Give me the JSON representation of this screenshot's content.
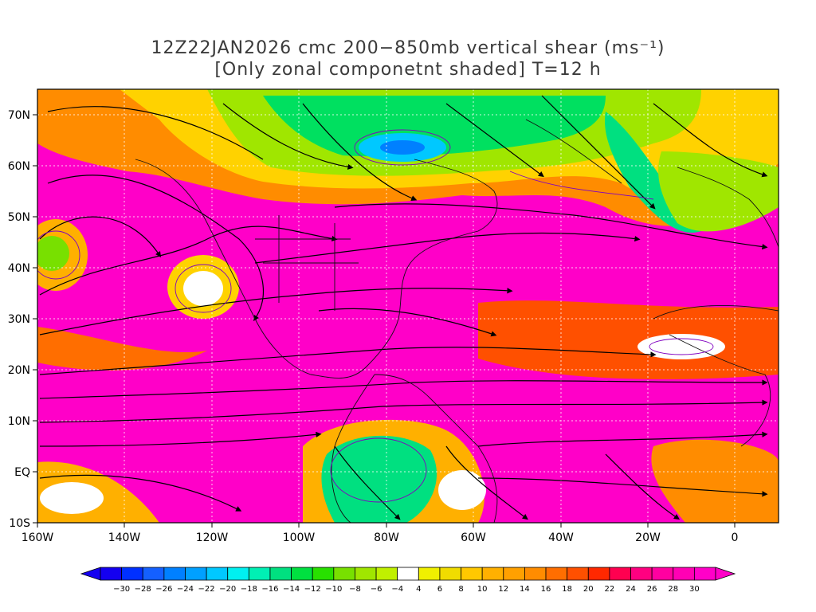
{
  "title": {
    "line1": "12Z22JAN2026 cmc 200−850mb vertical shear (ms⁻¹)",
    "line2": "[Only zonal componetnt shaded] T=12 h"
  },
  "axes": {
    "lat_labels": [
      "70N",
      "60N",
      "50N",
      "40N",
      "30N",
      "20N",
      "10N",
      "EQ",
      "10S"
    ],
    "lon_labels": [
      "160W",
      "140W",
      "120W",
      "100W",
      "80W",
      "60W",
      "40W",
      "20W",
      "0"
    ]
  },
  "colorbar": {
    "labels": [
      "−30",
      "−28",
      "−26",
      "−24",
      "−22",
      "−20",
      "−18",
      "−16",
      "−14",
      "−12",
      "−10",
      "−8",
      "−6",
      "−4",
      "4",
      "6",
      "8",
      "10",
      "12",
      "14",
      "16",
      "18",
      "20",
      "22",
      "24",
      "26",
      "28",
      "30"
    ],
    "colors": [
      "#1400f0",
      "#0030ff",
      "#1460ff",
      "#0080ff",
      "#00a0ff",
      "#00c8ff",
      "#00f0f0",
      "#00f0b4",
      "#00e080",
      "#00e040",
      "#28e000",
      "#78e000",
      "#a0e600",
      "#c0f000",
      "#ffffff",
      "#f0f000",
      "#f0dc00",
      "#ffc800",
      "#ffb000",
      "#ffa000",
      "#ff8c00",
      "#ff6e00",
      "#ff5000",
      "#ff2800",
      "#ff0050",
      "#ff0080",
      "#ff00a0",
      "#ff00b4",
      "#ff00c8"
    ]
  },
  "map": {
    "lon_range": [
      -160,
      10
    ],
    "lat_range": [
      -10,
      75
    ],
    "field": "200-850mb vertical shear, zonal component shaded"
  }
}
